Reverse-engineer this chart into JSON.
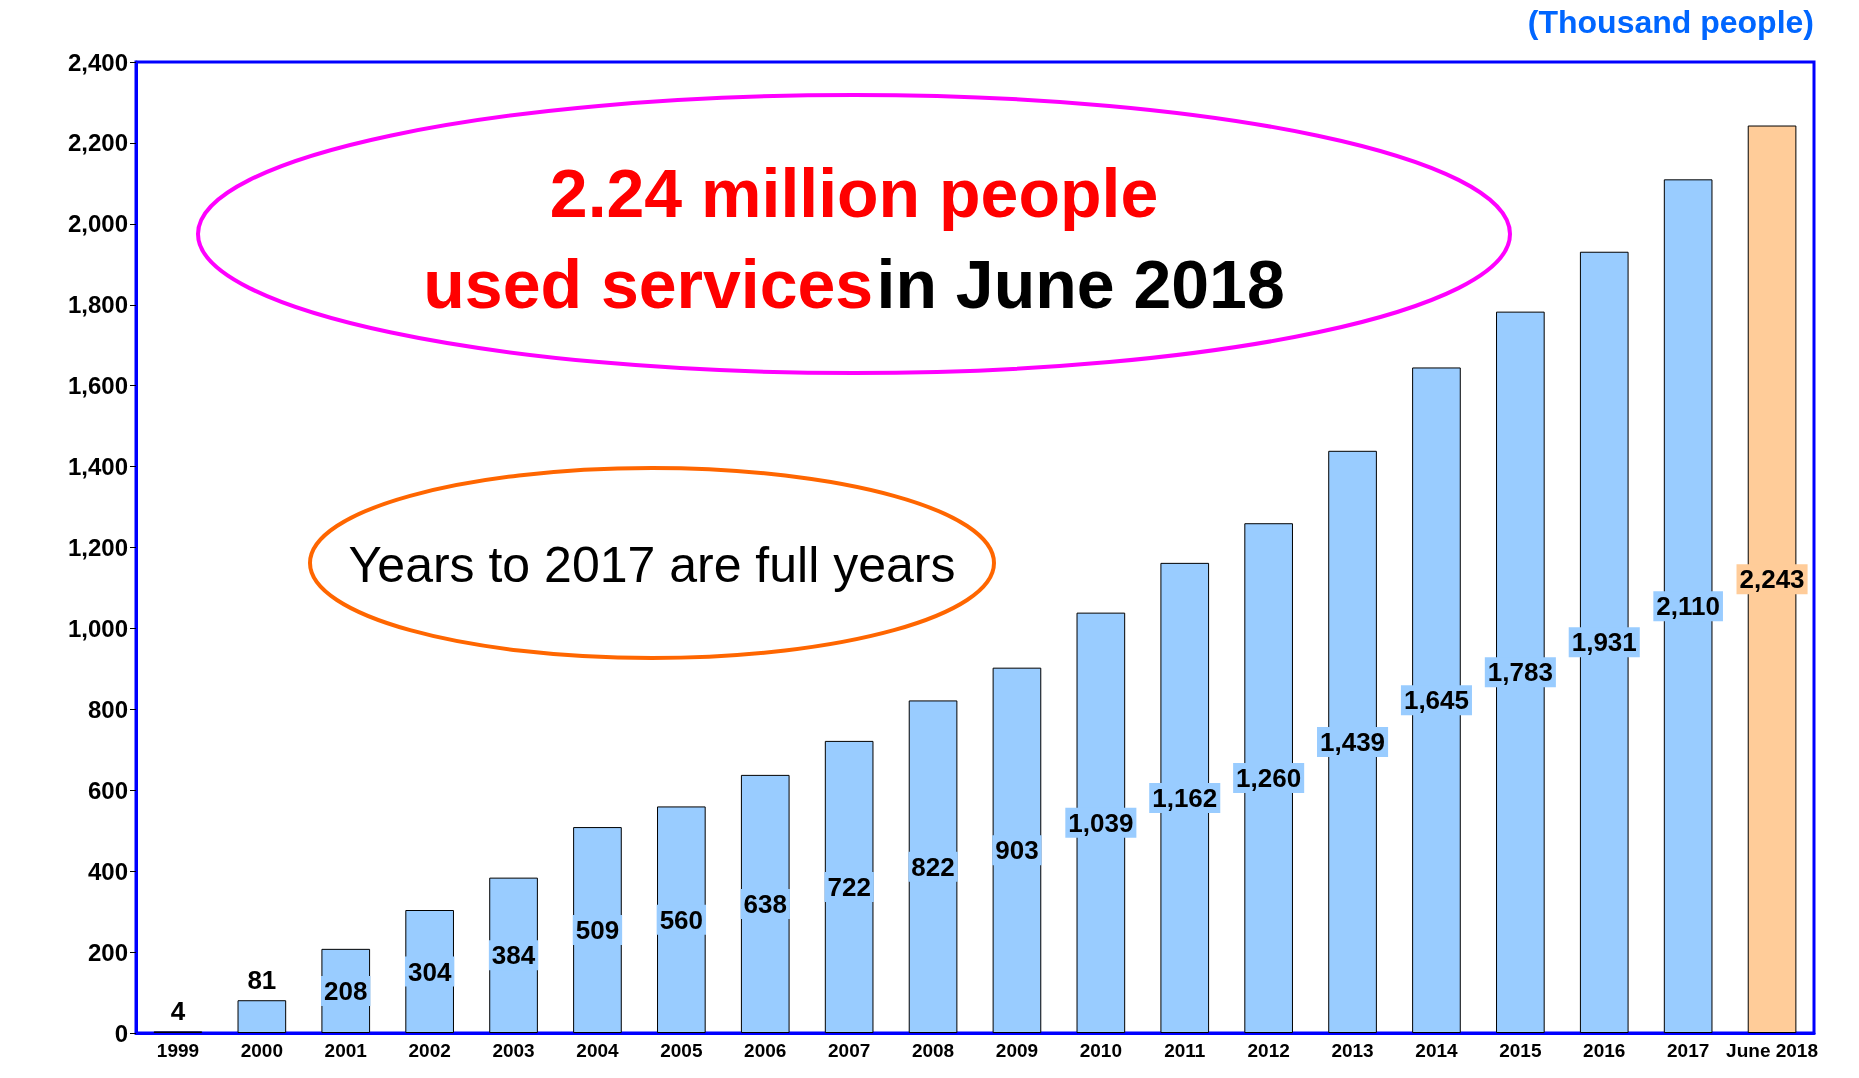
{
  "chart_data": {
    "type": "bar",
    "ylabel": "(Thousand people)",
    "categories": [
      "1999",
      "2000",
      "2001",
      "2002",
      "2003",
      "2004",
      "2005",
      "2006",
      "2007",
      "2008",
      "2009",
      "2010",
      "2011",
      "2012",
      "2013",
      "2014",
      "2015",
      "2016",
      "2017",
      "June 2018"
    ],
    "values": [
      4,
      81,
      208,
      304,
      384,
      509,
      560,
      638,
      722,
      822,
      903,
      1039,
      1162,
      1260,
      1439,
      1645,
      1783,
      1931,
      2110,
      2243
    ],
    "value_labels": [
      "4",
      "81",
      "208",
      "304",
      "384",
      "509",
      "560",
      "638",
      "722",
      "822",
      "903",
      "1,039",
      "1,162",
      "1,260",
      "1,439",
      "1,645",
      "1,783",
      "1,931",
      "2,110",
      "2,243"
    ],
    "colors": [
      "#99ccff",
      "#99ccff",
      "#99ccff",
      "#99ccff",
      "#99ccff",
      "#99ccff",
      "#99ccff",
      "#99ccff",
      "#99ccff",
      "#99ccff",
      "#99ccff",
      "#99ccff",
      "#99ccff",
      "#99ccff",
      "#99ccff",
      "#99ccff",
      "#99ccff",
      "#99ccff",
      "#99ccff",
      "#ffcc99"
    ],
    "ylim": [
      0,
      2400
    ],
    "yticks": [
      0,
      200,
      400,
      600,
      800,
      {
        "value": 1000,
        "label": "1,000"
      },
      {
        "value": 1200,
        "label": "1,200"
      },
      {
        "value": 1400,
        "label": "1,400"
      },
      {
        "value": 1600,
        "label": "1,600"
      },
      {
        "value": 1800,
        "label": "1,800"
      },
      {
        "value": 2000,
        "label": "2,000"
      },
      {
        "value": 2200,
        "label": "2,200"
      },
      {
        "value": 2400,
        "label": "2,400"
      }
    ],
    "grid": false,
    "annotations": [
      "2.24 million people",
      "used services",
      "in June 2018",
      "Years to 2017 are full years"
    ]
  }
}
